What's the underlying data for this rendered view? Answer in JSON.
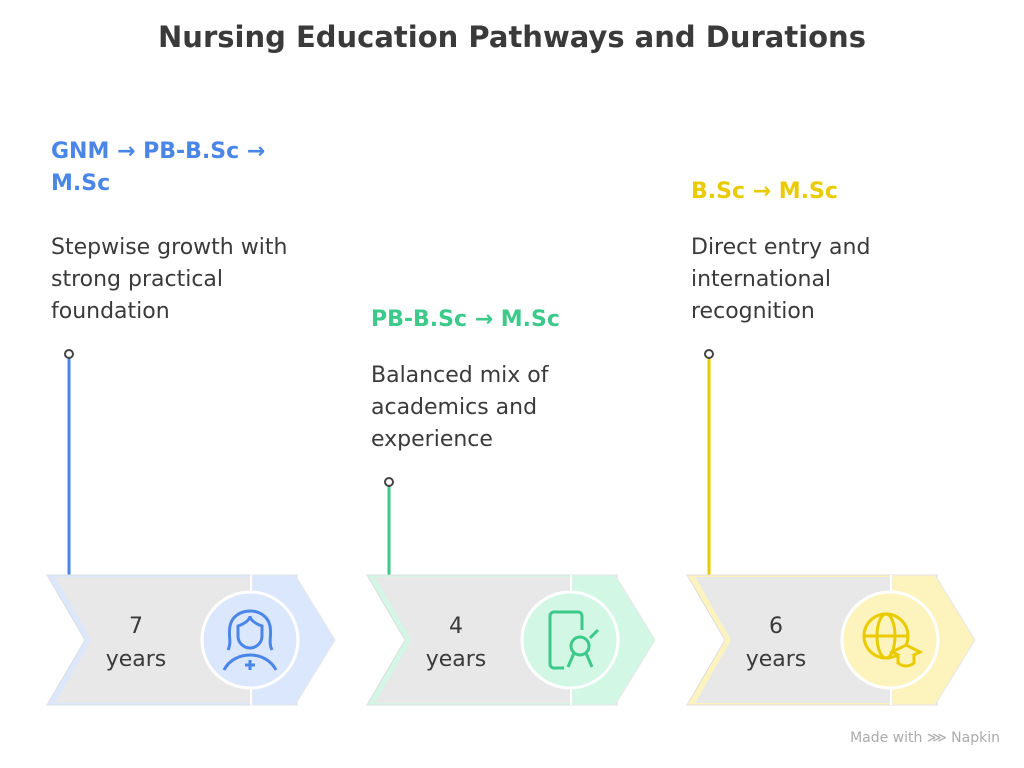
{
  "title": "Nursing Education Pathways and Durations",
  "pathways": [
    {
      "pathway": "GNM → PB-B.Sc → M.Sc",
      "description": "Stepwise growth with strong practical foundation",
      "duration_value": "7",
      "duration_unit": "years",
      "icon": "nurse-icon",
      "color": "#4a86e8",
      "light": "#dbe7fd"
    },
    {
      "pathway": "PB-B.Sc → M.Sc",
      "description": "Balanced mix of academics and experience",
      "duration_value": "4",
      "duration_unit": "years",
      "icon": "certificate-icon",
      "color": "#3cc98a",
      "light": "#d2f7e5"
    },
    {
      "pathway": "B.Sc → M.Sc",
      "description": "Direct entry and international recognition",
      "duration_value": "6",
      "duration_unit": "years",
      "icon": "globe-graduation-icon",
      "color": "#eacb00",
      "light": "#fdf4bd"
    }
  ],
  "footer": "Made with ⋙ Napkin"
}
